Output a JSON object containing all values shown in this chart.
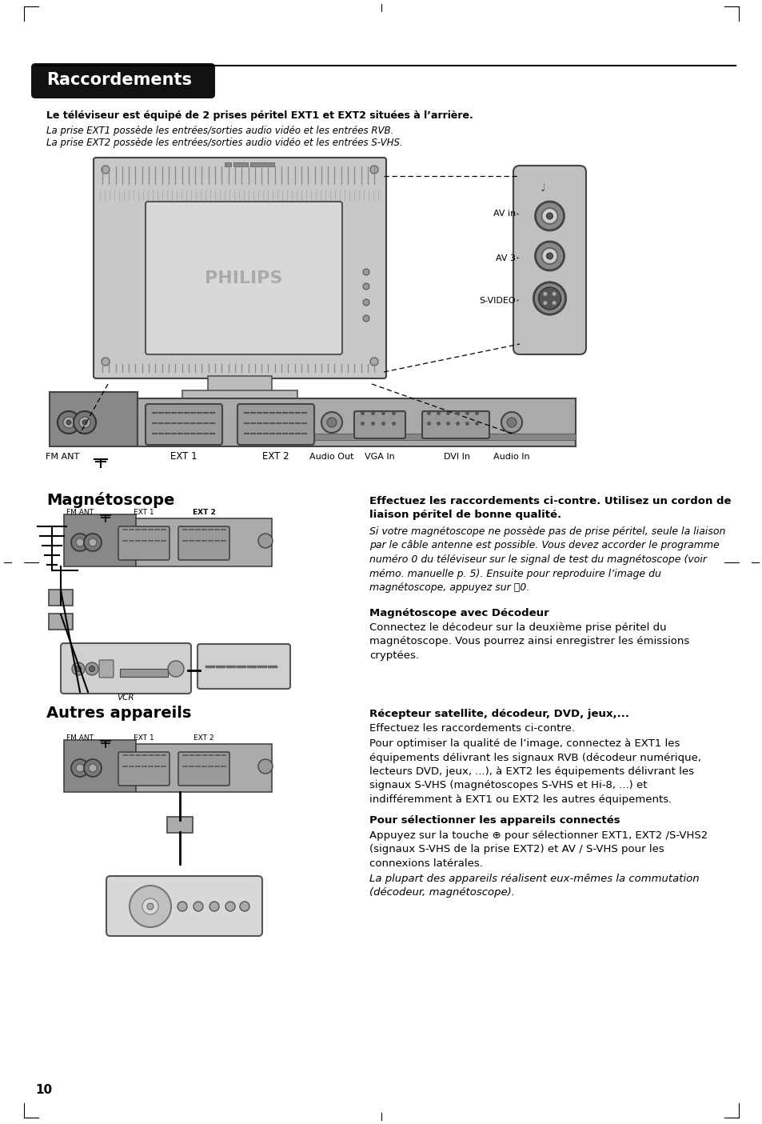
{
  "page_bg": "#ffffff",
  "title_bg": "#111111",
  "title_text": "Raccordements",
  "bold_line1": "Le téléviseur est équipé de 2 prises péritel EXT1 et EXT2 situées à l’arrière.",
  "italic_line2": "La prise EXT1 possède les entrées/sorties audio vidéo et les entrées RVB.",
  "italic_line3": "La prise EXT2 possède les entrées/sorties audio vidéo et les entrées S-VHS.",
  "section2_title": "Magnétoscope",
  "section3_title": "Autres appareils",
  "page_number": "10",
  "connector_labels": [
    "FM ANT",
    "EXT 1",
    "EXT 2",
    "Audio Out",
    "VGA In",
    "DVI In",
    "Audio In"
  ],
  "side_labels": [
    "AV in",
    "AV 3",
    "S-VIDEO"
  ],
  "mag_bold1": "Effectuez les raccordements ci-contre. Utilisez un cordon de",
  "mag_bold2": "liaison péritel de bonne qualité.",
  "mag_italic": "Si votre magnétoscope ne possède pas de prise péritel, seule la liaison\npar le câble antenne est possible. Vous devez accorder le programme\nnuméro 0 du téléviseur sur le signal de test du magnétoscope (voir\nmémo. manuelle p. 5). Ensuite pour reproduire l’image du\nmagnétoscope, appuyez sur ␰0.",
  "mag_dec_title": "Magnétoscope avec Décodeur",
  "mag_dec_body": "Connectez le décodeur sur la deuxième prise péritel du\nmagnétoscope. Vous pourrez ainsi enregistrer les émissions\ncryptées.",
  "rec_title": "Récepteur satellite, décodeur, DVD, jeux,...",
  "rec_body1": "Effectuez les raccordements ci-contre.",
  "rec_body2": "Pour optimiser la qualité de l’image, connectez à EXT1 les\néquipements délivrant les signaux RVB (décodeur numérique,\nlecteurs DVD, jeux, ...), à EXT2 les équipements délivrant les\nsignaux S-VHS (magnétoscopes S-VHS et Hi-8, ...) et\nindifféremment à EXT1 ou EXT2 les autres équipements.",
  "sel_title": "Pour sélectionner les appareils connectés",
  "sel_body": "Appuyez sur la touche ⊕ pour sélectionner EXT1, EXT2 /S-VHS2\n(signaux S-VHS de la prise EXT2) et AV / S-VHS pour les\nconnexions latérales.",
  "sel_italic": "La plupart des appareils réalisent eux-mêmes la commutation\n(décodeur, magnétoscope)."
}
